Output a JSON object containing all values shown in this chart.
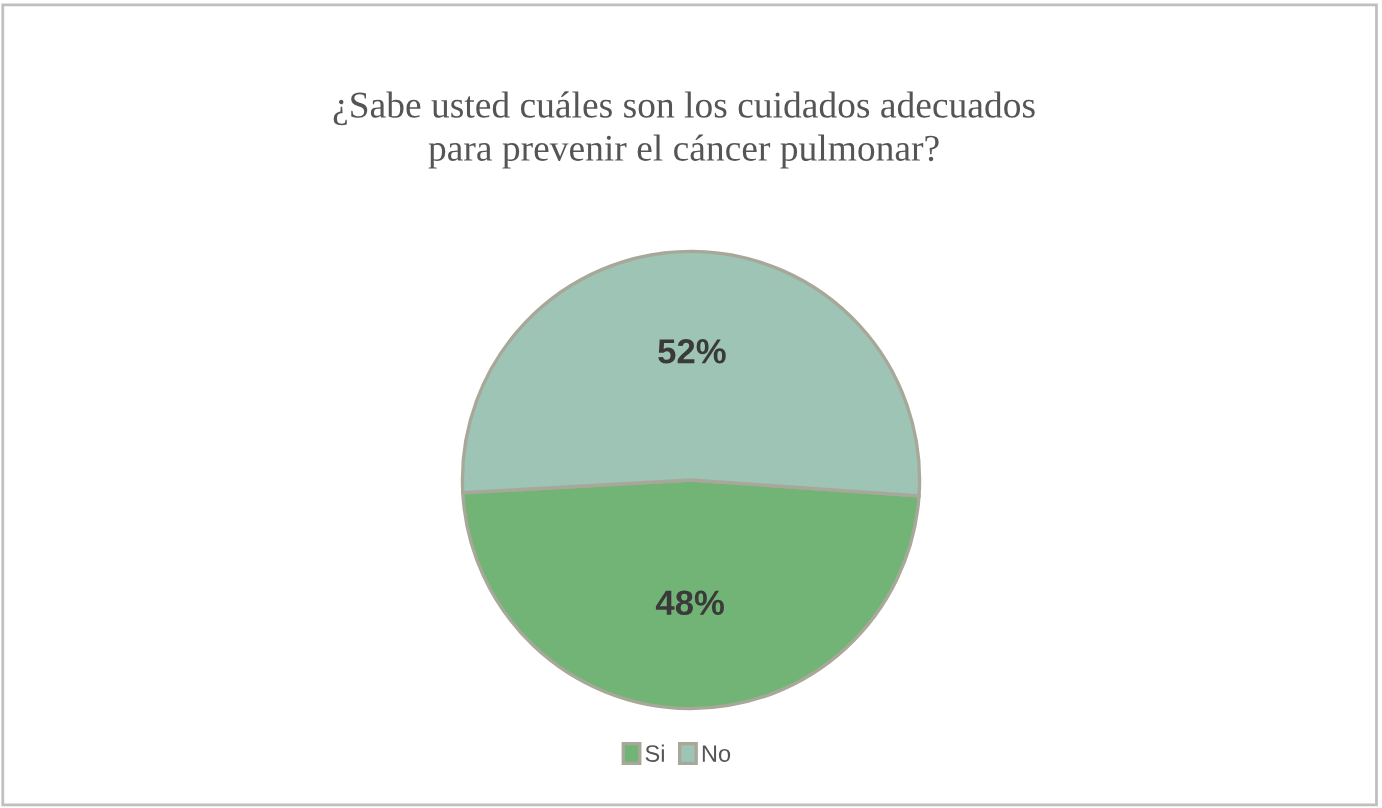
{
  "chart_data": {
    "type": "pie",
    "title": "¿Sabe usted cuáles son los cuidados adecuados\npara prevenir el cáncer pulmonar?",
    "categories": [
      "Si",
      "No"
    ],
    "values": [
      48,
      52
    ],
    "colors": [
      "#72b476",
      "#9dc4b5"
    ],
    "value_labels": [
      "48%",
      "52%"
    ],
    "legend": "bottom"
  }
}
